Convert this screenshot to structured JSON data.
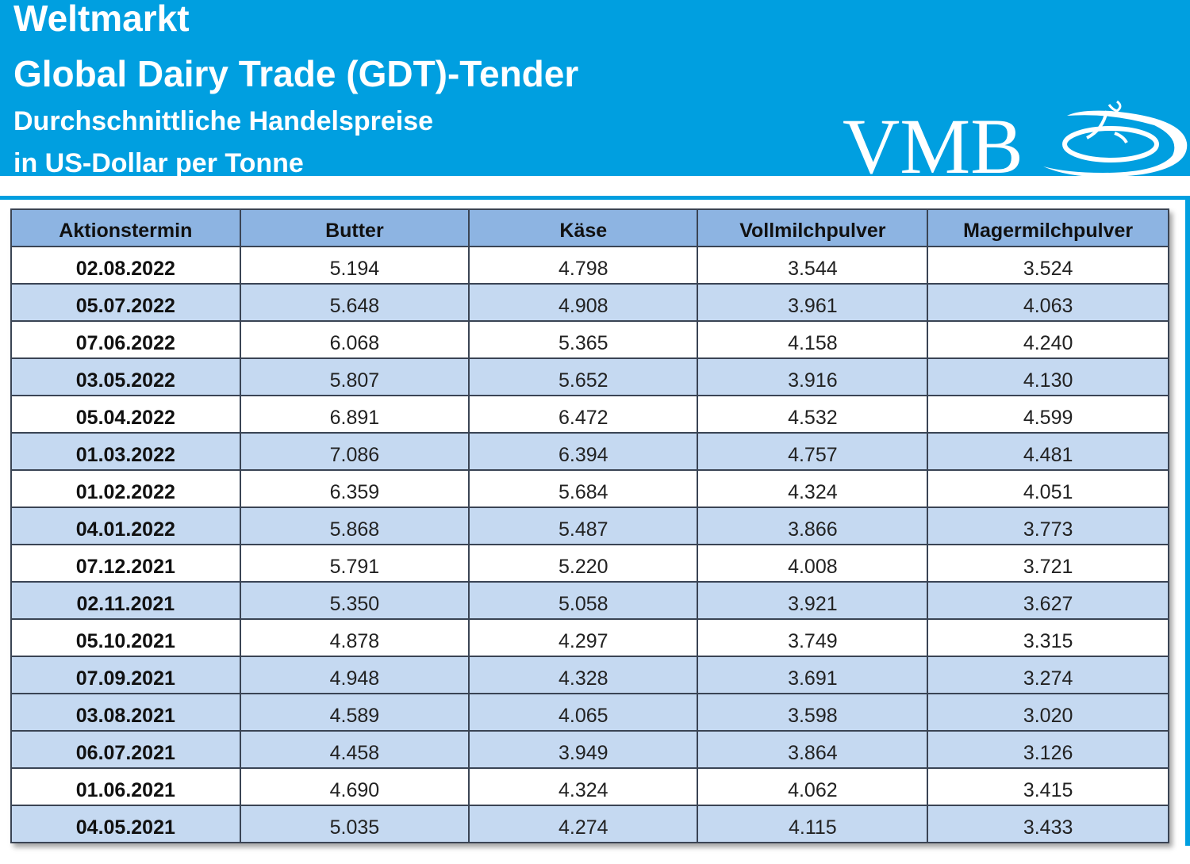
{
  "header": {
    "line1": "Weltmarkt",
    "line2": "Global Dairy Trade (GDT)-Tender",
    "line3": "Durchschnittliche Handelspreise",
    "line4": "in US-Dollar per Tonne",
    "logo_text": "VMB"
  },
  "colors": {
    "banner": "#009fe0",
    "header_row": "#8db4e2",
    "shaded_row": "#c5d9f1"
  },
  "table": {
    "columns": [
      "Aktionstermin",
      "Butter",
      "Käse",
      "Vollmilchpulver",
      "Magermilchpulver"
    ],
    "rows": [
      {
        "shaded": false,
        "cells": [
          "02.08.2022",
          "5.194",
          "4.798",
          "3.544",
          "3.524"
        ]
      },
      {
        "shaded": true,
        "cells": [
          "05.07.2022",
          "5.648",
          "4.908",
          "3.961",
          "4.063"
        ]
      },
      {
        "shaded": false,
        "cells": [
          "07.06.2022",
          "6.068",
          "5.365",
          "4.158",
          "4.240"
        ]
      },
      {
        "shaded": true,
        "cells": [
          "03.05.2022",
          "5.807",
          "5.652",
          "3.916",
          "4.130"
        ]
      },
      {
        "shaded": false,
        "cells": [
          "05.04.2022",
          "6.891",
          "6.472",
          "4.532",
          "4.599"
        ]
      },
      {
        "shaded": true,
        "cells": [
          "01.03.2022",
          "7.086",
          "6.394",
          "4.757",
          "4.481"
        ]
      },
      {
        "shaded": false,
        "cells": [
          "01.02.2022",
          "6.359",
          "5.684",
          "4.324",
          "4.051"
        ]
      },
      {
        "shaded": true,
        "cells": [
          "04.01.2022",
          "5.868",
          "5.487",
          "3.866",
          "3.773"
        ]
      },
      {
        "shaded": false,
        "cells": [
          "07.12.2021",
          "5.791",
          "5.220",
          "4.008",
          "3.721"
        ]
      },
      {
        "shaded": true,
        "cells": [
          "02.11.2021",
          "5.350",
          "5.058",
          "3.921",
          "3.627"
        ]
      },
      {
        "shaded": false,
        "cells": [
          "05.10.2021",
          "4.878",
          "4.297",
          "3.749",
          "3.315"
        ]
      },
      {
        "shaded": true,
        "cells": [
          "07.09.2021",
          "4.948",
          "4.328",
          "3.691",
          "3.274"
        ]
      },
      {
        "shaded": true,
        "cells": [
          "03.08.2021",
          "4.589",
          "4.065",
          "3.598",
          "3.020"
        ]
      },
      {
        "shaded": true,
        "cells": [
          "06.07.2021",
          "4.458",
          "3.949",
          "3.864",
          "3.126"
        ]
      },
      {
        "shaded": false,
        "cells": [
          "01.06.2021",
          "4.690",
          "4.324",
          "4.062",
          "3.415"
        ]
      },
      {
        "shaded": true,
        "cells": [
          "04.05.2021",
          "5.035",
          "4.274",
          "4.115",
          "3.433"
        ]
      }
    ]
  }
}
